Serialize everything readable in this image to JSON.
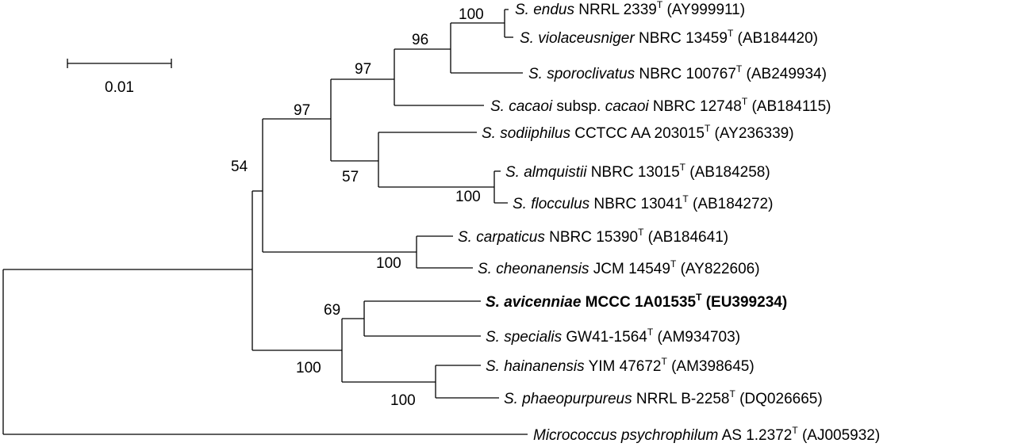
{
  "scale_bar": {
    "label": "0.01"
  },
  "bootstrap": {
    "n_endus_violaceus": "100",
    "n_96": "96",
    "n_97_inner": "97",
    "n_97_outer": "97",
    "n_54": "54",
    "n_57": "57",
    "n_almquistii": "100",
    "n_carpaticus": "100",
    "n_69": "69",
    "n_100_avicennia_group": "100",
    "n_hainanensis": "100"
  },
  "taxa": [
    {
      "id": "endus",
      "name": "S. endus",
      "strain": " NRRL 2339",
      "sup": "T",
      "acc": " (AY999911)"
    },
    {
      "id": "violaceusniger",
      "name": "S. violaceusniger",
      "strain": " NBRC 13459",
      "sup": "T",
      "acc": " (AB184420)"
    },
    {
      "id": "sporoclivatus",
      "name": "S. sporoclivatus",
      "strain": " NBRC 100767",
      "sup": "T",
      "acc": " (AB249934)"
    },
    {
      "id": "cacaoi",
      "name": "S. cacaoi",
      "mid": " subsp. ",
      "name2": "cacaoi",
      "strain": " NBRC 12748",
      "sup": "T",
      "acc": " (AB184115)"
    },
    {
      "id": "sodiiphilus",
      "name": "S. sodiiphilus",
      "strain": " CCTCC AA 203015",
      "sup": "T",
      "acc": " (AY236339)"
    },
    {
      "id": "almquistii",
      "name": "S. almquistii",
      "strain": " NBRC 13015",
      "sup": "T",
      "acc": " (AB184258)"
    },
    {
      "id": "flocculus",
      "name": "S. flocculus",
      "strain": " NBRC 13041",
      "sup": "T",
      "acc": " (AB184272)"
    },
    {
      "id": "carpaticus",
      "name": "S. carpaticus",
      "strain": " NBRC 15390",
      "sup": "T",
      "acc": " (AB184641)"
    },
    {
      "id": "cheonanensis",
      "name": "S. cheonanensis",
      "strain": " JCM 14549",
      "sup": "T",
      "acc": " (AY822606)"
    },
    {
      "id": "avicenniae",
      "name": "S. avicenniae",
      "strain": " MCCC 1A01535",
      "sup": "T",
      "acc": " (EU399234)"
    },
    {
      "id": "specialis",
      "name": "S. specialis",
      "strain": " GW41-1564",
      "sup": "T",
      "acc": " (AM934703)"
    },
    {
      "id": "hainanensis",
      "name": "S. hainanensis",
      "strain": " YIM 47672",
      "sup": "T",
      "acc": " (AM398645)"
    },
    {
      "id": "phaeopurpureus",
      "name": "S. phaeopurpureus",
      "strain": " NRRL B-2258",
      "sup": "T",
      "acc": " (DQ026665)"
    },
    {
      "id": "micrococcus",
      "name": "Micrococcus psychrophilum",
      "strain": " AS 1.2372",
      "sup": "T",
      "acc": " (AJ005932)"
    }
  ]
}
